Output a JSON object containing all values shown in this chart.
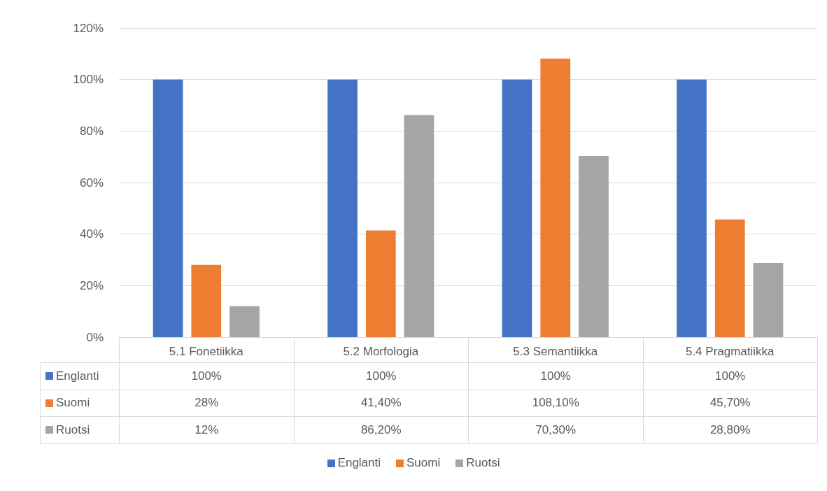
{
  "chart_data": {
    "type": "bar",
    "categories": [
      "5.1 Fonetiikka",
      "5.2 Morfologia",
      "5.3 Semantiikka",
      "5.4 Pragmatiikka"
    ],
    "series": [
      {
        "name": "Englanti",
        "color": "#4472c4",
        "values": [
          100,
          100,
          100,
          100
        ],
        "value_labels": [
          "100%",
          "100%",
          "100%",
          "100%"
        ]
      },
      {
        "name": "Suomi",
        "color": "#ed7d31",
        "values": [
          28,
          41.4,
          108.1,
          45.7
        ],
        "value_labels": [
          "28%",
          "41,40%",
          "108,10%",
          "45,70%"
        ]
      },
      {
        "name": "Ruotsi",
        "color": "#a5a5a5",
        "values": [
          12,
          86.2,
          70.3,
          28.8
        ],
        "value_labels": [
          "12%",
          "86,20%",
          "70,30%",
          "28,80%"
        ]
      }
    ],
    "ylim": [
      0,
      120
    ],
    "yticks": [
      {
        "value": 0,
        "label": "0%"
      },
      {
        "value": 20,
        "label": "20%"
      },
      {
        "value": 40,
        "label": "40%"
      },
      {
        "value": 60,
        "label": "60%"
      },
      {
        "value": 80,
        "label": "80%"
      },
      {
        "value": 100,
        "label": "100%"
      },
      {
        "value": 120,
        "label": "120%"
      }
    ],
    "grid": "y",
    "legend": "bottom"
  }
}
